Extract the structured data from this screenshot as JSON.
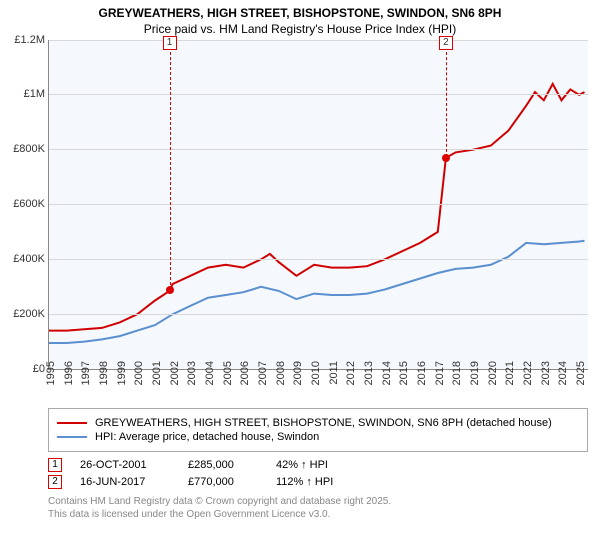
{
  "title_line1": "GREYWEATHERS, HIGH STREET, BISHOPSTONE, SWINDON, SN6 8PH",
  "title_line2": "Price paid vs. HM Land Registry's House Price Index (HPI)",
  "chart": {
    "type": "line",
    "background_color": "#f5f8fc",
    "grid_color": "#d8d8d8",
    "axis_color": "#888888",
    "ylim": [
      0,
      1200000
    ],
    "yticks": [
      0,
      200000,
      400000,
      600000,
      800000,
      1000000,
      1200000
    ],
    "ytick_labels": [
      "£0",
      "£200K",
      "£400K",
      "£600K",
      "£800K",
      "£1M",
      "£1.2M"
    ],
    "xlim": [
      1995,
      2025.5
    ],
    "xticks": [
      1995,
      1996,
      1997,
      1998,
      1999,
      2000,
      2001,
      2002,
      2003,
      2004,
      2005,
      2006,
      2007,
      2008,
      2009,
      2010,
      2011,
      2012,
      2013,
      2014,
      2015,
      2016,
      2017,
      2018,
      2019,
      2020,
      2021,
      2022,
      2023,
      2024,
      2025
    ],
    "label_fontsize": 11,
    "series": [
      {
        "name": "price_paid",
        "color": "#d00000",
        "line_width": 2,
        "points": [
          [
            1995,
            140000
          ],
          [
            1996,
            140000
          ],
          [
            1997,
            145000
          ],
          [
            1998,
            150000
          ],
          [
            1999,
            170000
          ],
          [
            2000,
            200000
          ],
          [
            2001,
            250000
          ],
          [
            2001.82,
            285000
          ],
          [
            2002,
            310000
          ],
          [
            2003,
            340000
          ],
          [
            2004,
            370000
          ],
          [
            2005,
            380000
          ],
          [
            2006,
            370000
          ],
          [
            2007,
            400000
          ],
          [
            2007.5,
            420000
          ],
          [
            2008,
            390000
          ],
          [
            2009,
            340000
          ],
          [
            2010,
            380000
          ],
          [
            2011,
            370000
          ],
          [
            2012,
            370000
          ],
          [
            2013,
            375000
          ],
          [
            2014,
            400000
          ],
          [
            2015,
            430000
          ],
          [
            2016,
            460000
          ],
          [
            2017,
            500000
          ],
          [
            2017.46,
            770000
          ],
          [
            2018,
            790000
          ],
          [
            2019,
            800000
          ],
          [
            2020,
            815000
          ],
          [
            2021,
            870000
          ],
          [
            2022,
            960000
          ],
          [
            2022.5,
            1010000
          ],
          [
            2023,
            980000
          ],
          [
            2023.5,
            1040000
          ],
          [
            2024,
            980000
          ],
          [
            2024.5,
            1020000
          ],
          [
            2025,
            1000000
          ],
          [
            2025.3,
            1010000
          ]
        ]
      },
      {
        "name": "hpi",
        "color": "#5a8fd0",
        "line_width": 2,
        "points": [
          [
            1995,
            95000
          ],
          [
            1996,
            95000
          ],
          [
            1997,
            100000
          ],
          [
            1998,
            108000
          ],
          [
            1999,
            120000
          ],
          [
            2000,
            140000
          ],
          [
            2001,
            160000
          ],
          [
            2002,
            200000
          ],
          [
            2003,
            230000
          ],
          [
            2004,
            260000
          ],
          [
            2005,
            270000
          ],
          [
            2006,
            280000
          ],
          [
            2007,
            300000
          ],
          [
            2008,
            285000
          ],
          [
            2009,
            255000
          ],
          [
            2010,
            275000
          ],
          [
            2011,
            270000
          ],
          [
            2012,
            270000
          ],
          [
            2013,
            275000
          ],
          [
            2014,
            290000
          ],
          [
            2015,
            310000
          ],
          [
            2016,
            330000
          ],
          [
            2017,
            350000
          ],
          [
            2018,
            365000
          ],
          [
            2019,
            370000
          ],
          [
            2020,
            380000
          ],
          [
            2021,
            410000
          ],
          [
            2022,
            460000
          ],
          [
            2023,
            455000
          ],
          [
            2024,
            460000
          ],
          [
            2025,
            465000
          ],
          [
            2025.3,
            468000
          ]
        ]
      }
    ],
    "markers": [
      {
        "n": "1",
        "x": 2001.82,
        "y": 285000
      },
      {
        "n": "2",
        "x": 2017.46,
        "y": 770000
      }
    ]
  },
  "legend": {
    "items": [
      {
        "color": "#d00000",
        "label": "GREYWEATHERS, HIGH STREET, BISHOPSTONE, SWINDON, SN6 8PH (detached house)"
      },
      {
        "color": "#5a8fd0",
        "label": "HPI: Average price, detached house, Swindon"
      }
    ]
  },
  "events": [
    {
      "n": "1",
      "date": "26-OCT-2001",
      "price": "£285,000",
      "pct": "42% ↑ HPI"
    },
    {
      "n": "2",
      "date": "16-JUN-2017",
      "price": "£770,000",
      "pct": "112% ↑ HPI"
    }
  ],
  "footnote_line1": "Contains HM Land Registry data © Crown copyright and database right 2025.",
  "footnote_line2": "This data is licensed under the Open Government Licence v3.0."
}
